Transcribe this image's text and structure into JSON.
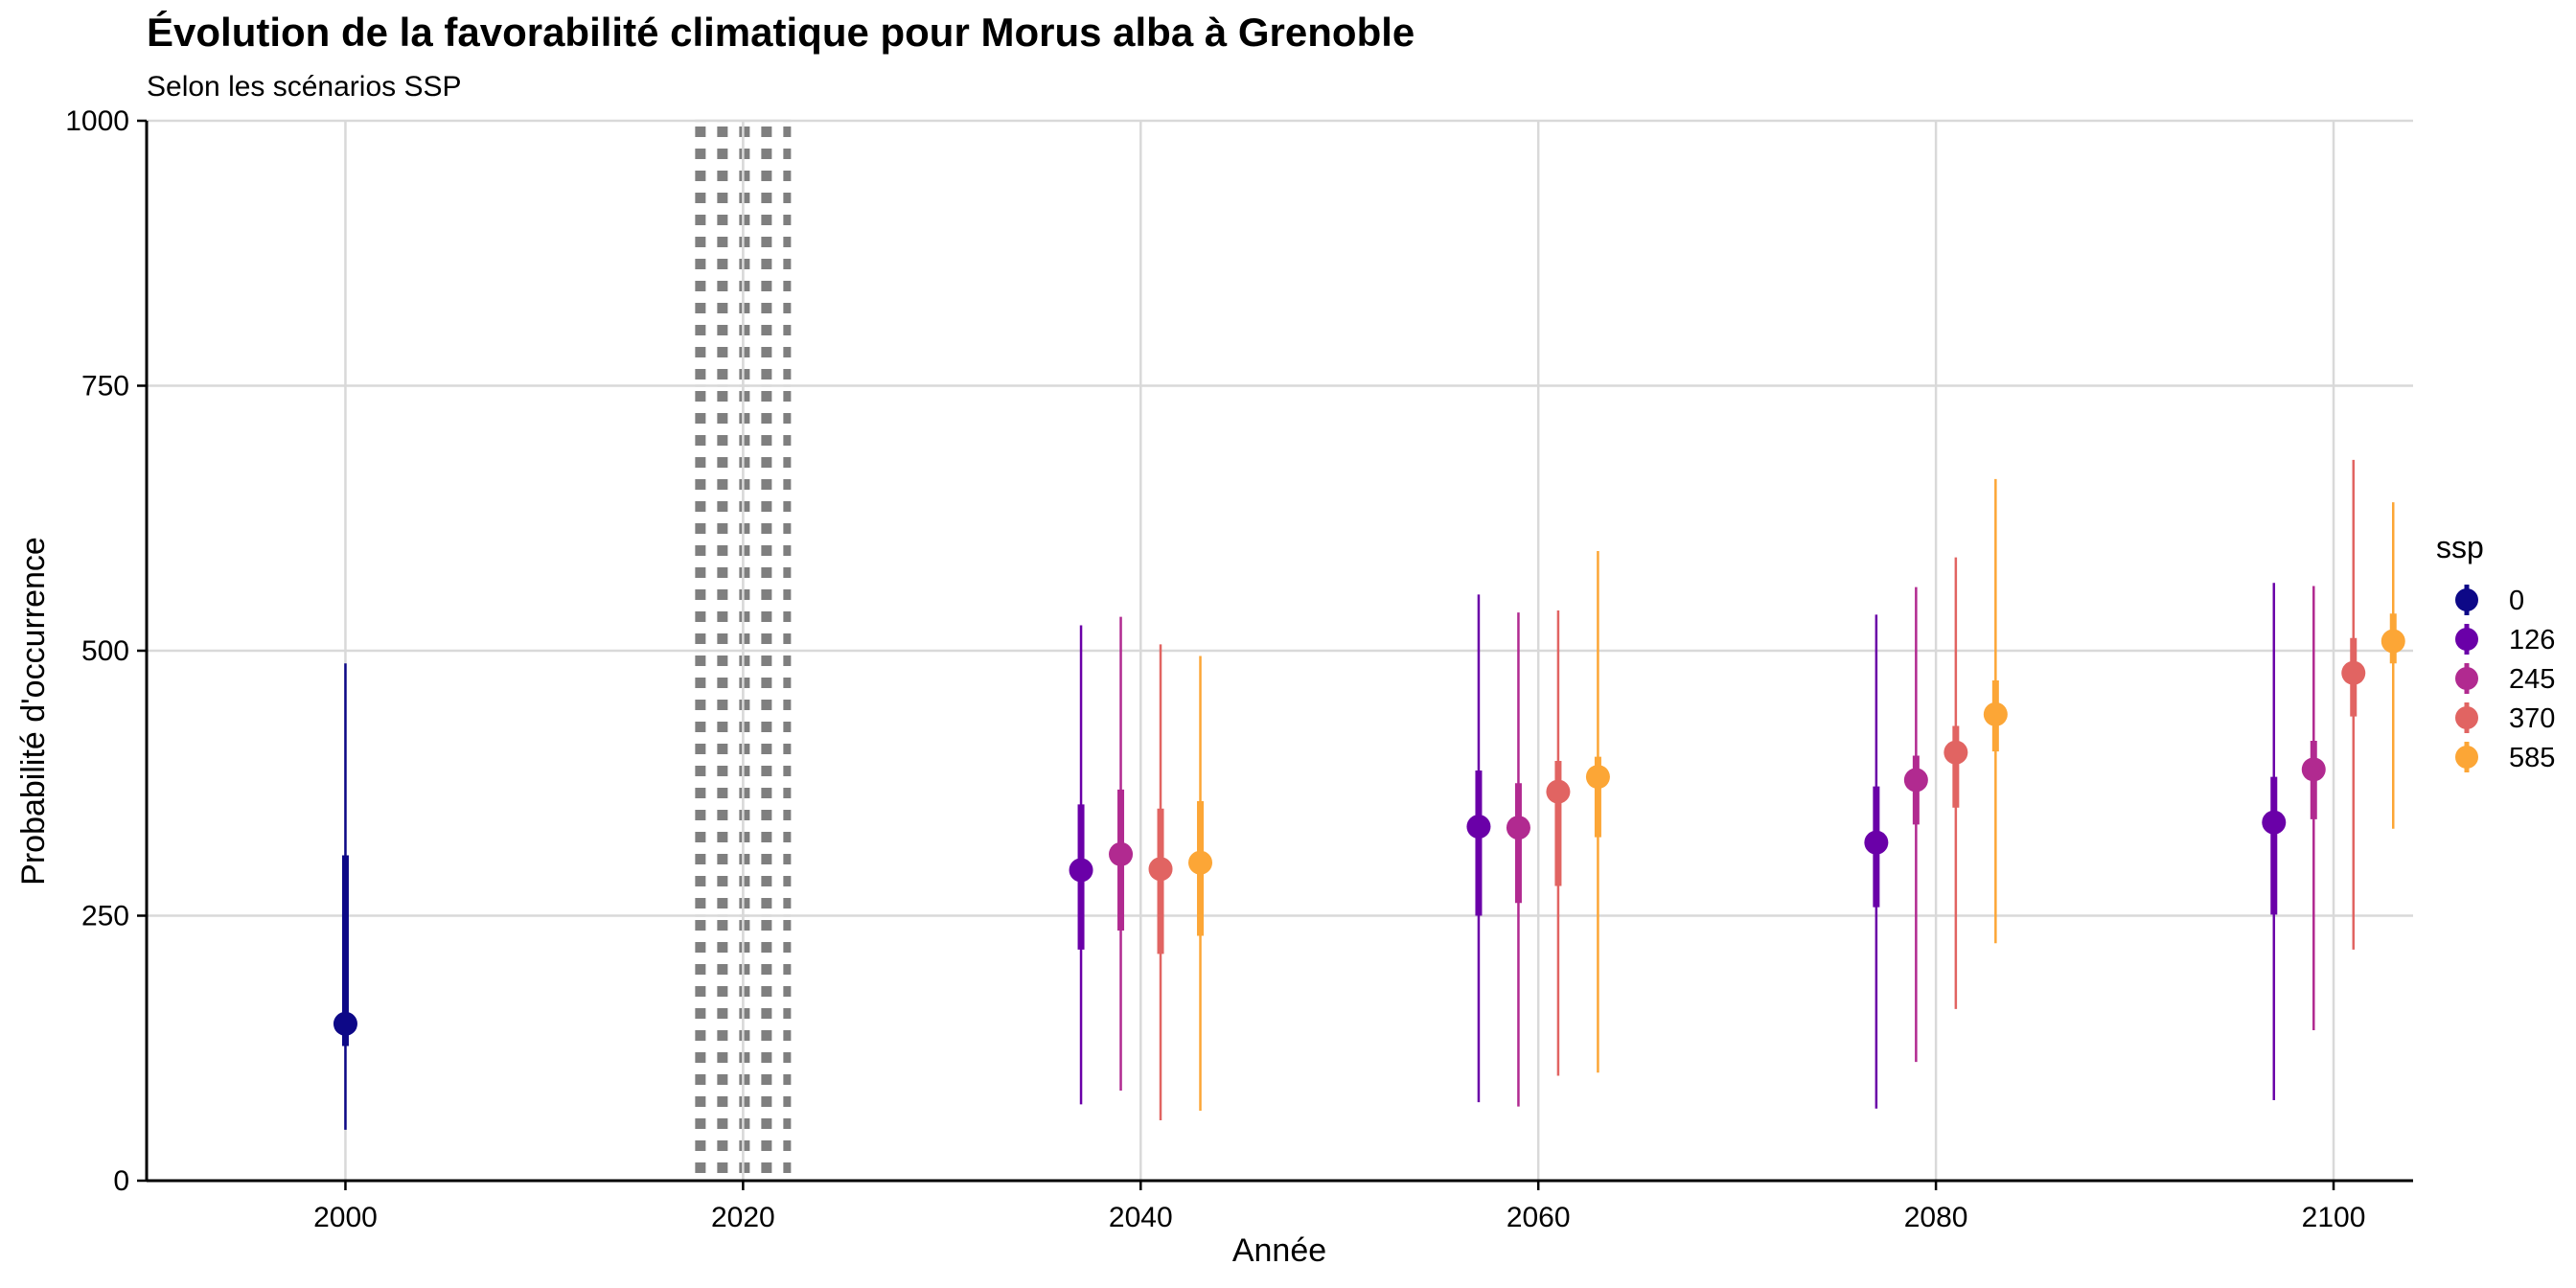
{
  "chart_data": {
    "type": "pointrange",
    "title": "Évolution de la favorabilité climatique pour Morus alba à Grenoble",
    "subtitle": "Selon les scénarios SSP",
    "xlabel": "Année",
    "ylabel": "Probabilité d'occurrence",
    "xlim": [
      1990,
      2104
    ],
    "ylim": [
      0,
      1000
    ],
    "x_ticks": [
      2000,
      2020,
      2040,
      2060,
      2080,
      2100
    ],
    "x_tick_labels": [
      "2000",
      "2020",
      "2040",
      "2060",
      "2080",
      "2100"
    ],
    "y_ticks": [
      0,
      250,
      500,
      750,
      1000
    ],
    "y_tick_labels": [
      "0",
      "250",
      "500",
      "750",
      "1000"
    ],
    "grid": true,
    "reference_line": {
      "x": 2020,
      "style": "dotted",
      "color": "#7f7f7f"
    },
    "legend": {
      "title": "ssp",
      "position": "right"
    },
    "series": [
      {
        "name": "0",
        "color": "#0d0887",
        "points": [
          {
            "x": 2000,
            "y": 148,
            "inner": [
              127,
              307
            ],
            "outer": [
              48,
              488
            ]
          }
        ]
      },
      {
        "name": "126",
        "color": "#6a00a8",
        "points": [
          {
            "x": 2037,
            "y": 293,
            "inner": [
              218,
              355
            ],
            "outer": [
              72,
              524
            ]
          },
          {
            "x": 2057,
            "y": 334,
            "inner": [
              250,
              387
            ],
            "outer": [
              74,
              553
            ]
          },
          {
            "x": 2077,
            "y": 319,
            "inner": [
              258,
              372
            ],
            "outer": [
              68,
              534
            ]
          },
          {
            "x": 2097,
            "y": 338,
            "inner": [
              251,
              381
            ],
            "outer": [
              76,
              564
            ]
          }
        ]
      },
      {
        "name": "245",
        "color": "#b12a90",
        "points": [
          {
            "x": 2039,
            "y": 308,
            "inner": [
              236,
              369
            ],
            "outer": [
              85,
              532
            ]
          },
          {
            "x": 2059,
            "y": 333,
            "inner": [
              262,
              375
            ],
            "outer": [
              70,
              536
            ]
          },
          {
            "x": 2079,
            "y": 378,
            "inner": [
              336,
              401
            ],
            "outer": [
              112,
              560
            ]
          },
          {
            "x": 2099,
            "y": 388,
            "inner": [
              341,
              415
            ],
            "outer": [
              142,
              561
            ]
          }
        ]
      },
      {
        "name": "370",
        "color": "#e16462",
        "points": [
          {
            "x": 2041,
            "y": 294,
            "inner": [
              214,
              351
            ],
            "outer": [
              57,
              506
            ]
          },
          {
            "x": 2061,
            "y": 367,
            "inner": [
              278,
              396
            ],
            "outer": [
              99,
              538
            ]
          },
          {
            "x": 2081,
            "y": 404,
            "inner": [
              352,
              429
            ],
            "outer": [
              162,
              588
            ]
          },
          {
            "x": 2101,
            "y": 479,
            "inner": [
              438,
              512
            ],
            "outer": [
              218,
              680
            ]
          }
        ]
      },
      {
        "name": "585",
        "color": "#fca636",
        "points": [
          {
            "x": 2043,
            "y": 300,
            "inner": [
              231,
              358
            ],
            "outer": [
              66,
              495
            ]
          },
          {
            "x": 2063,
            "y": 381,
            "inner": [
              324,
              400
            ],
            "outer": [
              102,
              594
            ]
          },
          {
            "x": 2083,
            "y": 440,
            "inner": [
              405,
              472
            ],
            "outer": [
              224,
              662
            ]
          },
          {
            "x": 2103,
            "y": 509,
            "inner": [
              488,
              535
            ],
            "outer": [
              332,
              640
            ]
          }
        ]
      }
    ]
  }
}
